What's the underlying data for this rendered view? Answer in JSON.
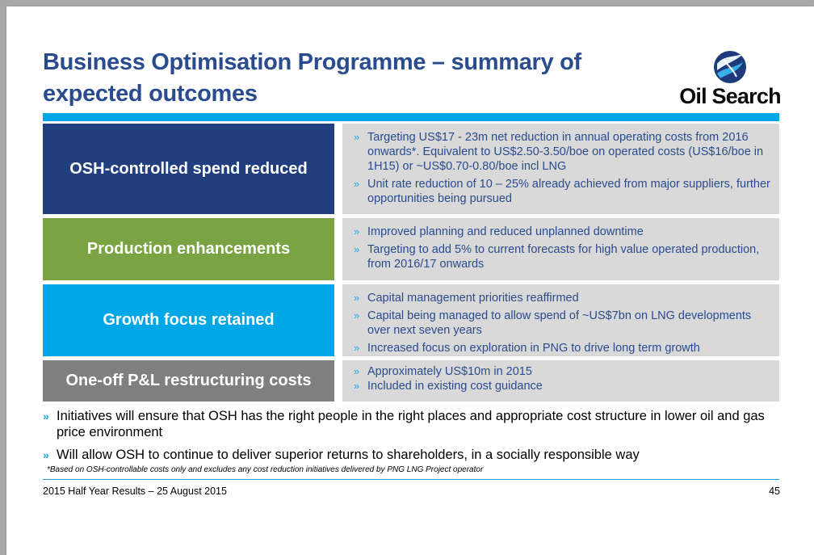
{
  "title": "Business Optimisation Programme – summary of expected outcomes",
  "logo": {
    "text": "Oil Search"
  },
  "rows": [
    {
      "label": "OSH-controlled spend reduced",
      "color": "#213f7e",
      "bullets": [
        "Targeting US$17 - 23m net reduction in annual operating costs from 2016 onwards*.  Equivalent to US$2.50-3.50/boe on operated costs (US$16/boe in 1H15) or ~US$0.70-0.80/boe incl LNG",
        "Unit rate reduction of 10 – 25% already achieved from major suppliers, further opportunities being pursued"
      ]
    },
    {
      "label": "Production enhancements",
      "color": "#7aa443",
      "bullets": [
        "Improved planning and reduced unplanned downtime",
        "Targeting to add 5% to current forecasts for high value operated production, from 2016/17 onwards"
      ]
    },
    {
      "label": "Growth focus retained",
      "color": "#00a7e6",
      "bullets": [
        "Capital management priorities reaffirmed",
        "Capital being managed to allow spend of ~US$7bn on LNG developments over next seven years",
        "Increased focus on exploration in PNG to drive long term growth"
      ]
    },
    {
      "label": "One-off P&L restructuring costs",
      "color": "#7f7f7f",
      "bullets": [
        "Approximately US$10m in 2015",
        "Included in existing cost guidance"
      ]
    }
  ],
  "summary_bullets": [
    "Initiatives will ensure that OSH has the right people in the right places and appropriate cost structure in lower oil and gas price environment",
    "Will allow OSH to continue to deliver superior returns to shareholders, in a socially responsible way"
  ],
  "bullet_glyph": "»",
  "footnote": "*Based on OSH-controllable costs only and excludes any cost reduction initiatives delivered by PNG LNG Project operator",
  "footer": {
    "left": "2015 Half Year Results – 25 August 2015",
    "page": "45"
  },
  "colors": {
    "title": "#2a4b8d",
    "accent": "#00a7e6",
    "background": "#a7a7a7"
  },
  "icons": {
    "logo_mark": "oil-search-swirl-icon",
    "bullet": "chevron-double-right-icon"
  }
}
